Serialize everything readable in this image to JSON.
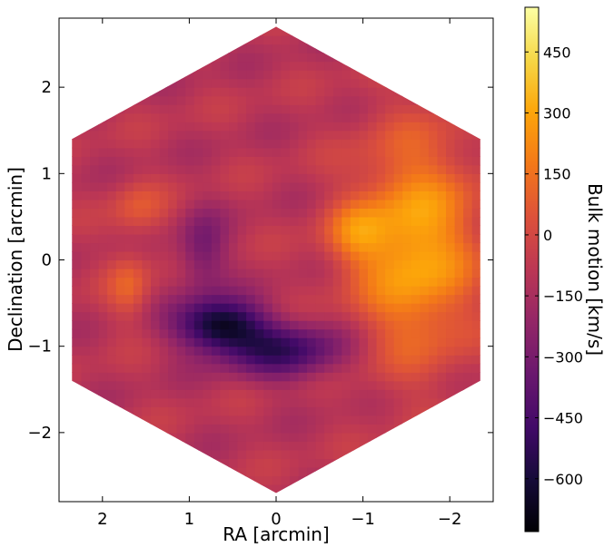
{
  "chart_data": {
    "type": "heatmap",
    "title": "",
    "xlabel": "RA [arcmin]",
    "ylabel": "Declination [arcmin]",
    "xlim": [
      2.5,
      -2.5
    ],
    "ylim": [
      -2.8,
      2.8
    ],
    "x_inverted": true,
    "x_ticks": [
      2,
      1,
      0,
      -1,
      -2
    ],
    "x_tick_labels": [
      "2",
      "1",
      "0",
      "−1",
      "−2"
    ],
    "y_ticks": [
      2,
      1,
      0,
      -1,
      -2
    ],
    "y_tick_labels": [
      "2",
      "1",
      "0",
      "−1",
      "−2"
    ],
    "grid": false,
    "mask_shape": "hexagon (pointy top), vertices at (0, ±2.7) and (±2.35, ±1.4)",
    "colormap": "inferno",
    "colorbar": {
      "label": "Bulk motion [km/s]",
      "min": -730,
      "max": 560,
      "ticks": [
        450,
        300,
        150,
        0,
        -150,
        -300,
        -450,
        -600
      ],
      "tick_labels": [
        "450",
        "300",
        "150",
        "0",
        "−150",
        "−300",
        "−450",
        "−600"
      ]
    },
    "features": [
      {
        "label": "receding (orange/yellow) region",
        "ra": -1.5,
        "dec": 0.3,
        "value": 350
      },
      {
        "label": "peak receding",
        "ra": -0.9,
        "dec": 0.3,
        "value": 500
      },
      {
        "label": "approaching (dark) region",
        "ra": 0.7,
        "dec": -0.7,
        "value": -700
      },
      {
        "label": "approaching tail",
        "ra": -0.2,
        "dec": -1.1,
        "value": -550
      },
      {
        "label": "background level",
        "ra": 1.8,
        "dec": 1.3,
        "value": -100
      }
    ]
  }
}
